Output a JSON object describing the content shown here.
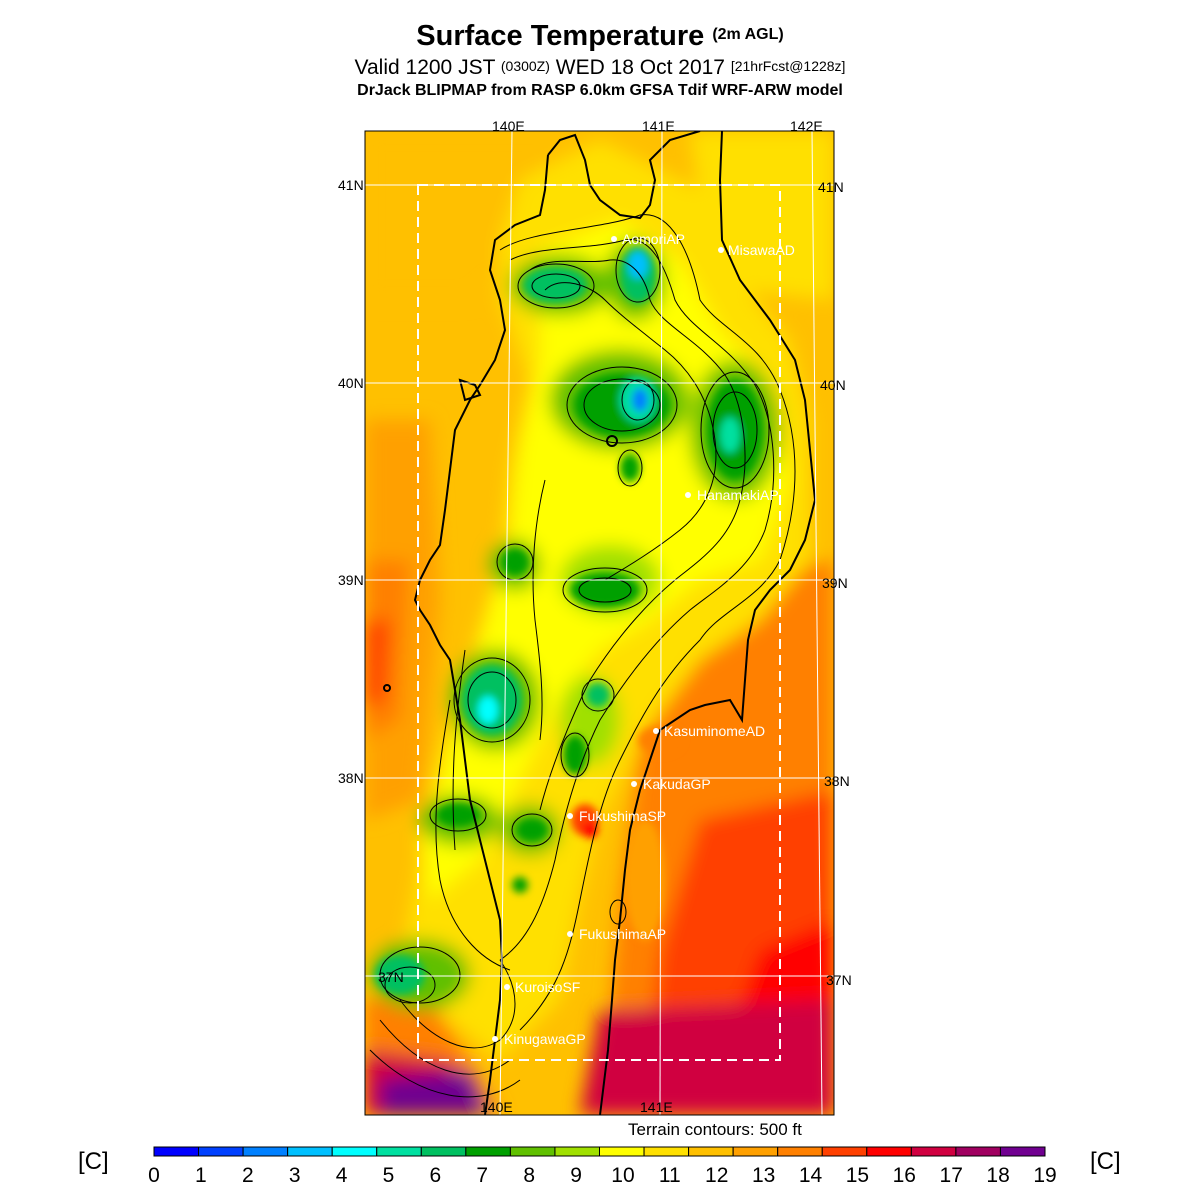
{
  "header": {
    "title_main": "Surface Temperature",
    "title_suffix": "(2m AGL)",
    "valid_prefix": "Valid 1200 JST",
    "valid_zulu": "(0300Z)",
    "valid_date": "WED 18 Oct 2017",
    "forecast_info": "[21hrFcst@1228z]",
    "model_line": "DrJack BLIPMAP from RASP 6.0km GFSA Tdif WRF-ARW model"
  },
  "map": {
    "lon_labels_top": [
      "140E",
      "141E",
      "142E"
    ],
    "lon_labels_bottom": [
      "140E",
      "141E"
    ],
    "lat_labels_left": [
      "41N",
      "40N",
      "39N",
      "38N",
      "37N"
    ],
    "lat_labels_right": [
      "41N",
      "40N",
      "39N",
      "38N",
      "37N"
    ],
    "stations": [
      {
        "name": "AomoriAP"
      },
      {
        "name": "MisawaAD"
      },
      {
        "name": "HanamakiAP"
      },
      {
        "name": "KasuminomeAD"
      },
      {
        "name": "KakudaGP"
      },
      {
        "name": "FukushimaSP"
      },
      {
        "name": "FukushimaAP"
      },
      {
        "name": "KuroisoSF"
      },
      {
        "name": "KinugawaGP"
      }
    ],
    "terrain_note": "Terrain contours: 500 ft"
  },
  "colorbar": {
    "unit": "[C]",
    "ticks": [
      "0",
      "1",
      "2",
      "3",
      "4",
      "5",
      "6",
      "7",
      "8",
      "9",
      "10",
      "11",
      "12",
      "13",
      "14",
      "15",
      "16",
      "17",
      "18",
      "19"
    ],
    "colors": [
      "#0000ff",
      "#0040ff",
      "#0080ff",
      "#00c0ff",
      "#00ffff",
      "#00e0a0",
      "#00c060",
      "#00a000",
      "#60c000",
      "#a0e000",
      "#ffff00",
      "#ffe000",
      "#ffc000",
      "#ffa000",
      "#ff8000",
      "#ff4000",
      "#ff0000",
      "#d00040",
      "#a00060",
      "#700090"
    ]
  }
}
